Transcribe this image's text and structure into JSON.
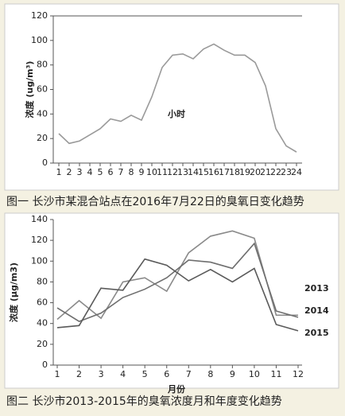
{
  "chart_data": [
    {
      "type": "line",
      "caption": "图一 长沙市某混合站点在2016年7月22日的臭氧日变化趋势",
      "ylabel": "浓度 (ug/m³)",
      "xlabel": "小时",
      "categories": [
        "1",
        "2",
        "3",
        "4",
        "5",
        "6",
        "7",
        "8",
        "9",
        "10",
        "11",
        "12",
        "13",
        "14",
        "15",
        "16",
        "17",
        "18",
        "19",
        "20",
        "21",
        "22",
        "23",
        "24"
      ],
      "values": [
        24,
        16,
        18,
        23,
        28,
        36,
        34,
        39,
        35,
        54,
        78,
        88,
        89,
        85,
        93,
        97,
        92,
        88,
        88,
        82,
        63,
        28,
        14,
        9
      ],
      "color": "#9a9a9a",
      "ylim": [
        0,
        120
      ],
      "yticks": [
        0,
        20,
        40,
        60,
        80,
        100,
        120
      ]
    },
    {
      "type": "line",
      "caption": "图二 长沙市2013-2015年的臭氧浓度月和年度变化趋势",
      "ylabel": "浓度 (μg/m3)",
      "xlabel": "月份",
      "categories": [
        "1",
        "2",
        "3",
        "4",
        "5",
        "6",
        "7",
        "8",
        "9",
        "10",
        "11",
        "12"
      ],
      "series": [
        {
          "name": "2013",
          "color": "#8a8a8a",
          "values": [
            44,
            62,
            45,
            80,
            84,
            71,
            108,
            124,
            129,
            122,
            48,
            48
          ]
        },
        {
          "name": "2014",
          "color": "#6e6e6e",
          "values": [
            55,
            42,
            50,
            65,
            73,
            84,
            101,
            99,
            93,
            117,
            52,
            46
          ]
        },
        {
          "name": "2015",
          "color": "#5a5a5a",
          "values": [
            36,
            38,
            74,
            72,
            102,
            96,
            81,
            92,
            80,
            93,
            39,
            33
          ]
        }
      ],
      "ylim": [
        0,
        140
      ],
      "yticks": [
        0,
        20,
        40,
        60,
        80,
        100,
        120,
        140
      ]
    }
  ]
}
